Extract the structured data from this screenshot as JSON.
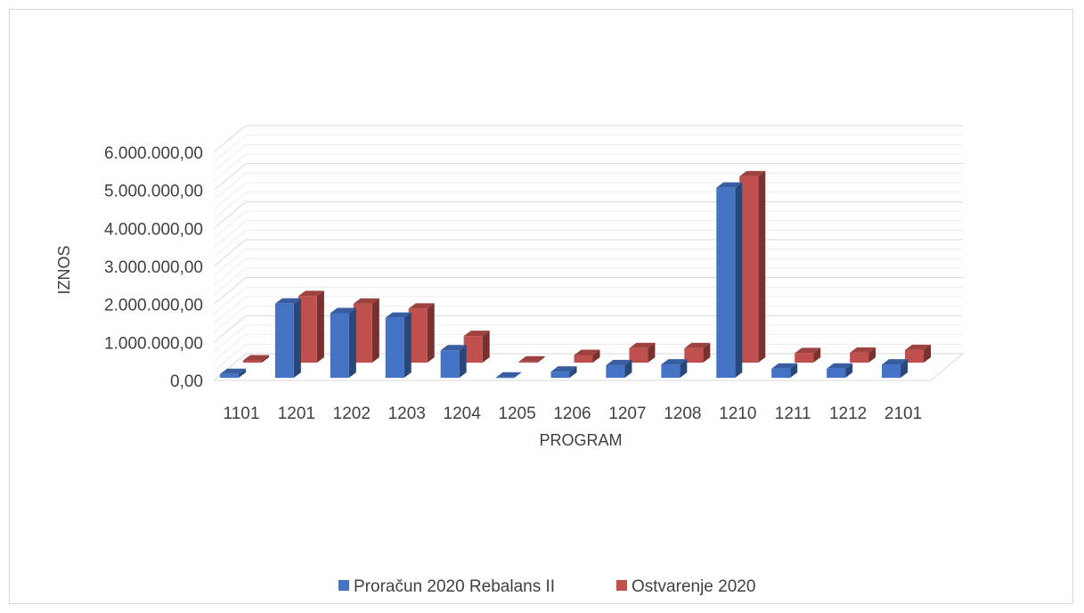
{
  "chart_data": {
    "type": "bar",
    "variant": "3d-clustered-column",
    "title": "",
    "xlabel": "PROGRAM",
    "ylabel": "IZNOS",
    "categories": [
      "1101",
      "1201",
      "1202",
      "1203",
      "1204",
      "1205",
      "1206",
      "1207",
      "1208",
      "1210",
      "1211",
      "1212",
      "2101"
    ],
    "ylim": [
      0,
      6000000
    ],
    "y_ticks": [
      "0,00",
      "1.000.000,00",
      "2.000.000,00",
      "3.000.000,00",
      "4.000.000,00",
      "5.000.000,00",
      "6.000.000,00"
    ],
    "series": [
      {
        "name": "Proračun 2020 Rebalans II",
        "color": "#4472c4",
        "values": [
          100000,
          1950000,
          1700000,
          1580000,
          720000,
          5000,
          160000,
          330000,
          350000,
          5000000,
          240000,
          240000,
          350000
        ]
      },
      {
        "name": "Ostvarenje 2020",
        "color": "#c0504d",
        "values": [
          60000,
          1750000,
          1550000,
          1420000,
          700000,
          30000,
          200000,
          380000,
          380000,
          4900000,
          250000,
          260000,
          330000
        ]
      }
    ],
    "grid": true,
    "legend_position": "bottom"
  }
}
